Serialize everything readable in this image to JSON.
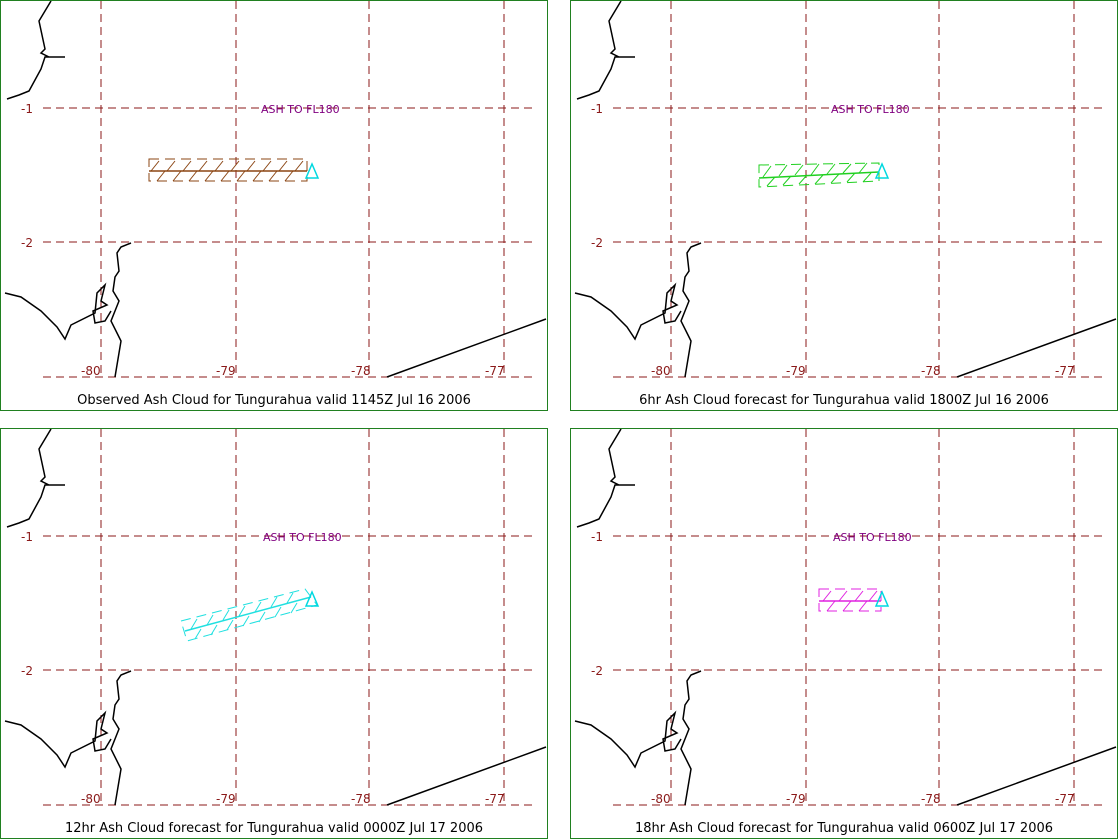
{
  "map": {
    "lat_labels": [
      "-1",
      "-2"
    ],
    "lon_labels": [
      "-80",
      "-79",
      "-78",
      "-77"
    ],
    "ash_label": "ASH TO FL180",
    "volcano": "Tungurahua",
    "colors": {
      "border": "#208020",
      "grid": "#8b1a1a",
      "coast": "#000000",
      "volcano_marker": "#00d8e0",
      "ash_label": "#800080"
    }
  },
  "panels": [
    {
      "title": "Observed Ash Cloud for Tungurahua valid 1145Z Jul 16 2006",
      "cloud_color": "#8b4513"
    },
    {
      "title": "6hr Ash Cloud forecast for Tungurahua valid 1800Z Jul 16 2006",
      "cloud_color": "#20d020"
    },
    {
      "title": "12hr Ash Cloud forecast for Tungurahua valid 0000Z Jul 17 2006",
      "cloud_color": "#20e0e0"
    },
    {
      "title": "18hr Ash Cloud forecast for Tungurahua valid 0600Z Jul 17 2006",
      "cloud_color": "#e020e0"
    }
  ]
}
